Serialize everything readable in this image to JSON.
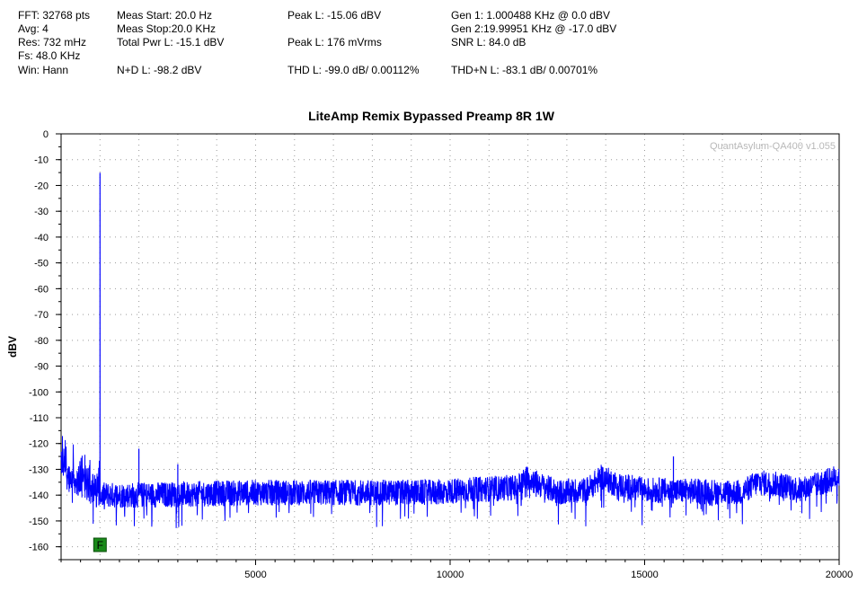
{
  "header": {
    "fft": "FFT: 32768 pts",
    "avg": "Avg: 4",
    "res": "Res: 732 mHz",
    "fs": "Fs: 48.0 KHz",
    "win": "Win: Hann",
    "meas_start": "Meas Start: 20.0 Hz",
    "meas_stop": "Meas Stop:20.0 KHz",
    "total_pwr": "Total Pwr L: -15.1 dBV",
    "nd": "N+D L: -98.2 dBV",
    "peak_dbv": "Peak L: -15.06 dBV",
    "peak_mv": "Peak L: 176 mVrms",
    "thd": "THD L: -99.0 dB/ 0.00112%",
    "gen1": "Gen 1: 1.000488 KHz @ 0.0  dBV",
    "gen2": "Gen 2:19.99951 KHz @ -17.0  dBV",
    "snr": "SNR L: 84.0 dB",
    "thdn": "THD+N L: -83.1 dB/ 0.00701%"
  },
  "watermark": "QuantAsylum-QA400 v1.055",
  "marker_label": "F",
  "chart_data": {
    "type": "line",
    "title": "LiteAmp Remix Bypassed Preamp 8R 1W",
    "xlabel": "",
    "ylabel": "dBV",
    "xlim": [
      0,
      20000
    ],
    "ylim": [
      -165,
      0
    ],
    "x_ticks": [
      5000,
      10000,
      15000,
      20000
    ],
    "y_ticks": [
      0,
      -10,
      -20,
      -30,
      -40,
      -50,
      -60,
      -70,
      -80,
      -90,
      -100,
      -110,
      -120,
      -130,
      -140,
      -150,
      -160
    ],
    "grid": true,
    "line_color": "#0000ff",
    "marker_color": "#1a8a1a",
    "marker_x": 1000,
    "noise_floor": [
      {
        "x": 0,
        "y": -128
      },
      {
        "x": 300,
        "y": -134
      },
      {
        "x": 900,
        "y": -140
      },
      {
        "x": 2000,
        "y": -140
      },
      {
        "x": 5000,
        "y": -139
      },
      {
        "x": 9500,
        "y": -139
      },
      {
        "x": 10500,
        "y": -138
      },
      {
        "x": 11700,
        "y": -137
      },
      {
        "x": 12000,
        "y": -133
      },
      {
        "x": 12300,
        "y": -136
      },
      {
        "x": 12800,
        "y": -139
      },
      {
        "x": 13500,
        "y": -138
      },
      {
        "x": 13900,
        "y": -133
      },
      {
        "x": 14300,
        "y": -136
      },
      {
        "x": 15000,
        "y": -138
      },
      {
        "x": 17500,
        "y": -139
      },
      {
        "x": 17900,
        "y": -135
      },
      {
        "x": 18500,
        "y": -136
      },
      {
        "x": 19000,
        "y": -138
      },
      {
        "x": 19800,
        "y": -134
      },
      {
        "x": 20000,
        "y": -132
      }
    ],
    "peaks": [
      {
        "x": 1000,
        "y": -15.1
      },
      {
        "x": 2000,
        "y": -122
      },
      {
        "x": 3000,
        "y": -128
      },
      {
        "x": 15740,
        "y": -125
      }
    ]
  }
}
